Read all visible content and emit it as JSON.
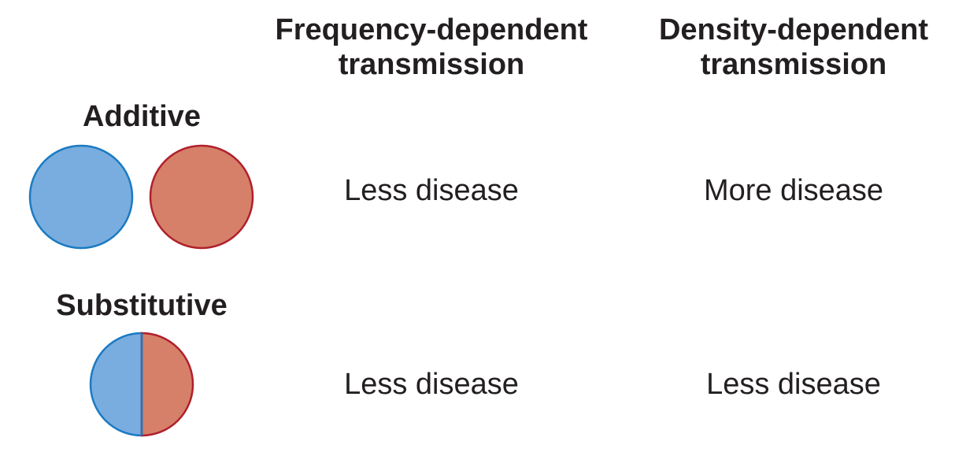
{
  "columns": {
    "frequency": {
      "line1": "Frequency-dependent",
      "line2": "transmission"
    },
    "density": {
      "line1": "Density-dependent",
      "line2": "transmission"
    }
  },
  "rows": {
    "additive": {
      "label": "Additive",
      "frequency_outcome": "Less disease",
      "density_outcome": "More disease"
    },
    "substitutive": {
      "label": "Substitutive",
      "frequency_outcome": "Less disease",
      "density_outcome": "Less disease"
    }
  },
  "colors": {
    "blue_fill": "#79addf",
    "blue_stroke": "#1b7ac2",
    "red_fill": "#d6806a",
    "red_stroke": "#b0202a",
    "text": "#231f20"
  }
}
